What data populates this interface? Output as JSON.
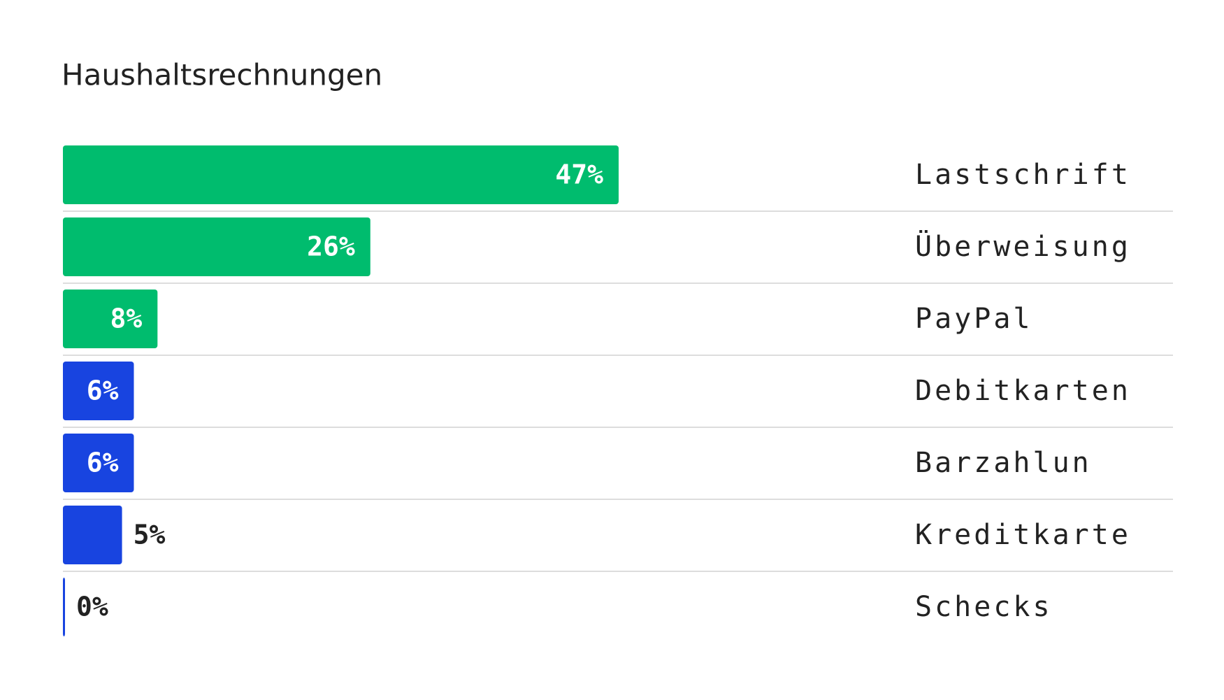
{
  "chart_data": {
    "type": "hbar",
    "title": "Haushaltsrechnungen",
    "categories": [
      "Lastschrift",
      "Überweisung",
      "PayPal",
      "Debitkarten",
      "Barzahlun",
      "Kreditkarte",
      "Schecks"
    ],
    "values": [
      47,
      26,
      8,
      6,
      6,
      5,
      0
    ],
    "value_labels": [
      "47%",
      "26%",
      "8%",
      "6%",
      "6%",
      "5%",
      "0%"
    ],
    "colors": [
      "#00bc6e",
      "#00bc6e",
      "#00bc6e",
      "#1844e0",
      "#1844e0",
      "#1844e0",
      "#1844e0"
    ]
  }
}
